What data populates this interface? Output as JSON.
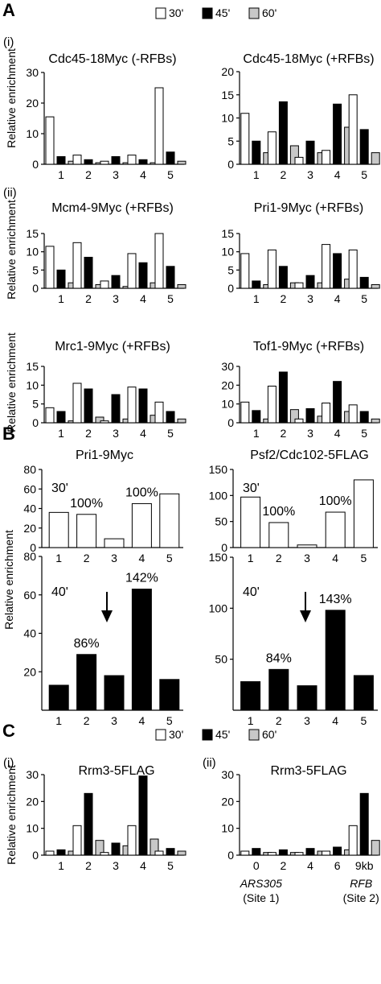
{
  "panels": {
    "A": {
      "letter": "A",
      "sub_i": "(i)",
      "sub_ii": "(ii)"
    },
    "B": {
      "letter": "B"
    },
    "C": {
      "letter": "C",
      "sub_i": "(i)",
      "sub_ii": "(ii)"
    }
  },
  "legend": {
    "entries": [
      {
        "label": "30'",
        "color": "#ffffff"
      },
      {
        "label": "45'",
        "color": "#000000"
      },
      {
        "label": "60'",
        "color": "#c8c8c8"
      }
    ]
  },
  "ylabel": "Relative enrichment",
  "colors": {
    "t30": "#ffffff",
    "t45": "#000000",
    "t60": "#c8c8c8",
    "stroke": "#000000"
  },
  "chart_data": [
    {
      "type": "bar",
      "title": "Cdc45-18Myc (-RFBs)",
      "categories": [
        "1",
        "2",
        "3",
        "4",
        "5"
      ],
      "ylim": [
        0,
        30
      ],
      "yticks": [
        0,
        10,
        20,
        30
      ],
      "series": [
        {
          "name": "30'",
          "values": [
            15.5,
            3,
            1,
            3,
            25
          ]
        },
        {
          "name": "45'",
          "values": [
            2.5,
            1.5,
            2.5,
            1.5,
            4
          ]
        },
        {
          "name": "60'",
          "values": [
            1,
            0.5,
            0.5,
            0.5,
            1
          ]
        }
      ]
    },
    {
      "type": "bar",
      "title": "Cdc45-18Myc (+RFBs)",
      "categories": [
        "1",
        "2",
        "3",
        "4",
        "5"
      ],
      "ylim": [
        0,
        20
      ],
      "yticks": [
        0,
        5,
        10,
        15,
        20
      ],
      "series": [
        {
          "name": "30'",
          "values": [
            11,
            7,
            1.5,
            3,
            15
          ]
        },
        {
          "name": "45'",
          "values": [
            5,
            13.5,
            5,
            13,
            7.5
          ]
        },
        {
          "name": "60'",
          "values": [
            2.5,
            4,
            2.5,
            8,
            2.5
          ]
        }
      ]
    },
    {
      "type": "bar",
      "title": "Mcm4-9Myc (+RFBs)",
      "categories": [
        "1",
        "2",
        "3",
        "4",
        "5"
      ],
      "ylim": [
        0,
        15
      ],
      "yticks": [
        0,
        5,
        10,
        15
      ],
      "series": [
        {
          "name": "30'",
          "values": [
            11.5,
            12.5,
            2,
            9.5,
            15
          ]
        },
        {
          "name": "45'",
          "values": [
            5,
            8.5,
            3.5,
            7,
            6
          ]
        },
        {
          "name": "60'",
          "values": [
            1.5,
            1,
            0.5,
            1.5,
            1
          ]
        }
      ]
    },
    {
      "type": "bar",
      "title": "Pri1-9Myc (+RFBs)",
      "categories": [
        "1",
        "2",
        "3",
        "4",
        "5"
      ],
      "ylim": [
        0,
        15
      ],
      "yticks": [
        0,
        5,
        10,
        15
      ],
      "series": [
        {
          "name": "30'",
          "values": [
            9.5,
            10.5,
            1.5,
            12,
            10.5
          ]
        },
        {
          "name": "45'",
          "values": [
            2,
            6,
            3.5,
            9.5,
            3
          ]
        },
        {
          "name": "60'",
          "values": [
            1,
            1.5,
            1.5,
            2.5,
            1
          ]
        }
      ]
    },
    {
      "type": "bar",
      "title": "Mrc1-9Myc (+RFBs)",
      "categories": [
        "1",
        "2",
        "3",
        "4",
        "5"
      ],
      "ylim": [
        0,
        15
      ],
      "yticks": [
        0,
        5,
        10,
        15
      ],
      "series": [
        {
          "name": "30'",
          "values": [
            4,
            10.5,
            0.5,
            9.5,
            5.5
          ]
        },
        {
          "name": "45'",
          "values": [
            3,
            9,
            7.5,
            9,
            3
          ]
        },
        {
          "name": "60'",
          "values": [
            0.5,
            1.5,
            1,
            2,
            1
          ]
        }
      ]
    },
    {
      "type": "bar",
      "title": "Tof1-9Myc (+RFBs)",
      "categories": [
        "1",
        "2",
        "3",
        "4",
        "5"
      ],
      "ylim": [
        0,
        30
      ],
      "yticks": [
        0,
        10,
        20,
        30
      ],
      "series": [
        {
          "name": "30'",
          "values": [
            11,
            19.5,
            2,
            10.5,
            9.5
          ]
        },
        {
          "name": "45'",
          "values": [
            6.5,
            27,
            7.5,
            22,
            6
          ]
        },
        {
          "name": "60'",
          "values": [
            2,
            7,
            3.5,
            6,
            2
          ]
        }
      ]
    },
    {
      "type": "bar",
      "title": "Pri1-9Myc",
      "time": "30'",
      "categories": [
        "1",
        "2",
        "3",
        "4",
        "5"
      ],
      "ylim": [
        0,
        80
      ],
      "yticks": [
        0,
        20,
        40,
        60,
        80
      ],
      "series": [
        {
          "name": "30'",
          "values": [
            36,
            34,
            9,
            45,
            55
          ]
        }
      ],
      "annotations": [
        {
          "category": "2",
          "text": "100%"
        },
        {
          "category": "4",
          "text": "100%"
        }
      ]
    },
    {
      "type": "bar",
      "title": "Psf2/Cdc102-5FLAG",
      "time": "30'",
      "categories": [
        "1",
        "2",
        "3",
        "4",
        "5"
      ],
      "ylim": [
        0,
        150
      ],
      "yticks": [
        0,
        50,
        100,
        150
      ],
      "series": [
        {
          "name": "30'",
          "values": [
            97,
            48,
            5,
            68,
            130
          ]
        }
      ],
      "annotations": [
        {
          "category": "2",
          "text": "100%"
        },
        {
          "category": "4",
          "text": "100%"
        }
      ]
    },
    {
      "type": "bar",
      "title": "",
      "time": "40'",
      "categories": [
        "1",
        "2",
        "3",
        "4",
        "5"
      ],
      "ylim": [
        0,
        80
      ],
      "yticks": [
        20,
        40,
        60,
        80
      ],
      "series": [
        {
          "name": "40'",
          "values": [
            13,
            29,
            18,
            63,
            16
          ]
        }
      ],
      "annotations": [
        {
          "category": "2",
          "text": "86%"
        },
        {
          "category": "4",
          "text": "142%"
        }
      ]
    },
    {
      "type": "bar",
      "title": "",
      "time": "40'",
      "categories": [
        "1",
        "2",
        "3",
        "4",
        "5"
      ],
      "ylim": [
        0,
        150
      ],
      "yticks": [
        50,
        100,
        150
      ],
      "series": [
        {
          "name": "40'",
          "values": [
            28,
            40,
            24,
            98,
            34
          ]
        }
      ],
      "annotations": [
        {
          "category": "2",
          "text": "84%"
        },
        {
          "category": "4",
          "text": "143%"
        }
      ]
    },
    {
      "type": "bar",
      "title": "Rrm3-5FLAG",
      "categories": [
        "1",
        "2",
        "3",
        "4",
        "5"
      ],
      "ylim": [
        0,
        30
      ],
      "yticks": [
        0,
        10,
        20,
        30
      ],
      "series": [
        {
          "name": "30'",
          "values": [
            1.5,
            11,
            1,
            11,
            1.5
          ]
        },
        {
          "name": "45'",
          "values": [
            2,
            23,
            4.5,
            29.5,
            2.5
          ]
        },
        {
          "name": "60'",
          "values": [
            1.5,
            5.5,
            3.5,
            6,
            1.5
          ]
        }
      ]
    },
    {
      "type": "bar",
      "title": "Rrm3-5FLAG",
      "categories": [
        "0",
        "2",
        "4",
        "6",
        "9kb"
      ],
      "ylim": [
        0,
        30
      ],
      "yticks": [
        0,
        10,
        20,
        30
      ],
      "series": [
        {
          "name": "30'",
          "values": [
            1.5,
            1,
            1,
            1.5,
            11
          ]
        },
        {
          "name": "45'",
          "values": [
            2.5,
            2,
            2.5,
            3,
            23
          ]
        },
        {
          "name": "60'",
          "values": [
            1,
            1,
            1.5,
            2,
            5.5
          ]
        }
      ],
      "extra_labels": [
        "ARS305",
        "(Site 1)",
        "RFB",
        "(Site 2)"
      ]
    }
  ]
}
